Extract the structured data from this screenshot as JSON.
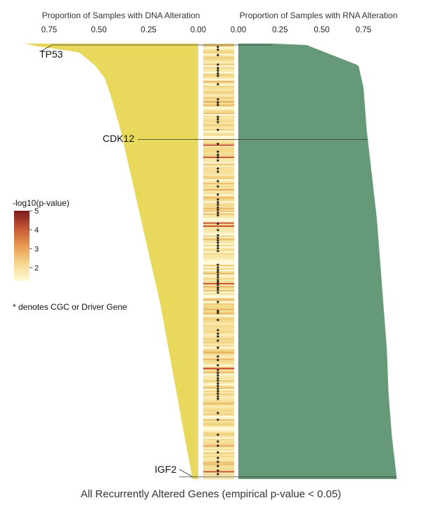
{
  "chart_data": {
    "type": "bar",
    "orientation": "horizontal",
    "panels": [
      {
        "name": "dna",
        "xlabel": "Proportion of Samples with DNA Alteration",
        "xticks": [
          "0.75",
          "0.50",
          "0.25",
          "0.00"
        ],
        "xtick_values": [
          0.75,
          0.5,
          0.25,
          0.0
        ],
        "xlim": [
          0.0,
          0.87
        ],
        "direction": "reversed",
        "color": "#e8d95c",
        "profile": {
          "rank_fraction": [
            0.0,
            0.005,
            0.02,
            0.05,
            0.08,
            0.12,
            0.2,
            0.3,
            0.4,
            0.5,
            0.6,
            0.7,
            0.8,
            0.9,
            0.97,
            1.0
          ],
          "proportion": [
            0.87,
            0.83,
            0.6,
            0.52,
            0.47,
            0.44,
            0.39,
            0.34,
            0.29,
            0.24,
            0.19,
            0.15,
            0.11,
            0.07,
            0.04,
            0.03
          ]
        }
      },
      {
        "name": "rna",
        "xlabel": "Proportion of Samples with RNA Alteration",
        "xticks": [
          "0.00",
          "0.25",
          "0.50",
          "0.75"
        ],
        "xtick_values": [
          0.0,
          0.25,
          0.5,
          0.75
        ],
        "xlim": [
          0.0,
          0.95
        ],
        "direction": "normal",
        "color": "#669977",
        "profile": {
          "rank_fraction": [
            0.0,
            0.002,
            0.05,
            0.1,
            0.15,
            0.2,
            0.3,
            0.4,
            0.5,
            0.6,
            0.7,
            0.8,
            0.9,
            1.0
          ],
          "proportion": [
            0.2,
            0.4,
            0.72,
            0.75,
            0.76,
            0.77,
            0.8,
            0.83,
            0.85,
            0.87,
            0.89,
            0.9,
            0.92,
            0.95
          ]
        }
      }
    ],
    "heatmap": {
      "metric": "-log10(p-value)",
      "color_range": [
        1.3,
        5
      ],
      "colors": [
        "#fffbd9",
        "#f5d68c",
        "#e89a50",
        "#c65535",
        "#7a1a1a"
      ],
      "star_rank_fractions": [
        0.01,
        0.016,
        0.028,
        0.05,
        0.058,
        0.064,
        0.07,
        0.076,
        0.095,
        0.13,
        0.137,
        0.143,
        0.17,
        0.176,
        0.182,
        0.2,
        0.232,
        0.25,
        0.257,
        0.263,
        0.27,
        0.289,
        0.296,
        0.318,
        0.33,
        0.348,
        0.36,
        0.366,
        0.372,
        0.378,
        0.384,
        0.39,
        0.396,
        0.415,
        0.43,
        0.442,
        0.448,
        0.454,
        0.46,
        0.466,
        0.472,
        0.478,
        0.51,
        0.516,
        0.522,
        0.527,
        0.533,
        0.539,
        0.545,
        0.55,
        0.556,
        0.562,
        0.567,
        0.573,
        0.595,
        0.615,
        0.62,
        0.636,
        0.66,
        0.668,
        0.674,
        0.684,
        0.7,
        0.72,
        0.728,
        0.74,
        0.752,
        0.758,
        0.764,
        0.77,
        0.776,
        0.782,
        0.788,
        0.794,
        0.8,
        0.806,
        0.812,
        0.818,
        0.85,
        0.865,
        0.9,
        0.915,
        0.925,
        0.94,
        0.953,
        0.962,
        0.972,
        0.982,
        0.99
      ],
      "red_band_rank_fractions": [
        0.232,
        0.26,
        0.411,
        0.418,
        0.55,
        0.745,
        0.982
      ]
    },
    "highlighted_genes": [
      {
        "name": "TP53",
        "rank_fraction": 0.0
      },
      {
        "name": "CDK12",
        "rank_fraction": 0.22
      },
      {
        "name": "IGF2",
        "rank_fraction": 0.995
      }
    ],
    "legend": {
      "title": "-log10(p-value)",
      "ticks": [
        "5",
        "4",
        "3",
        "2"
      ],
      "tick_values": [
        5,
        4,
        3,
        2
      ]
    },
    "note": "* denotes CGC or Driver Gene",
    "caption": "All Recurrently Altered Genes (empirical p-value < 0.05)"
  }
}
